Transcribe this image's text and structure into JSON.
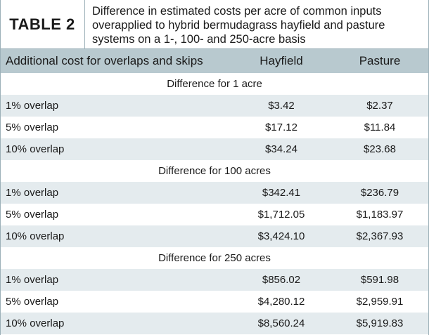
{
  "table": {
    "tag": "TABLE 2",
    "caption": "Difference in estimated costs per acre of common inputs overapplied to hybrid bermudagrass hayfield and pasture systems on a 1-, 100- and 250-acre basis",
    "headers": [
      "Additional cost for overlaps and skips",
      "Hayfield",
      "Pasture"
    ],
    "sections": [
      {
        "title": "Difference for 1 acre",
        "rows": [
          [
            "1% overlap",
            "$3.42",
            "$2.37"
          ],
          [
            "5% overlap",
            "$17.12",
            "$11.84"
          ],
          [
            "10% overlap",
            "$34.24",
            "$23.68"
          ]
        ]
      },
      {
        "title": "Difference for 100 acres",
        "rows": [
          [
            "1% overlap",
            "$342.41",
            "$236.79"
          ],
          [
            "5% overlap",
            "$1,712.05",
            "$1,183.97"
          ],
          [
            "10% overlap",
            "$3,424.10",
            "$2,367.93"
          ]
        ]
      },
      {
        "title": "Difference for 250 acres",
        "rows": [
          [
            "1% overlap",
            "$856.02",
            "$591.98"
          ],
          [
            "5% overlap",
            "$4,280.12",
            "$2,959.91"
          ],
          [
            "10% overlap",
            "$8,560.24",
            "$5,919.83"
          ]
        ]
      }
    ]
  },
  "colors": {
    "header_band": "#b8c9cf",
    "shade_row": "#e4ebee",
    "rule": "#9cb0b8"
  }
}
